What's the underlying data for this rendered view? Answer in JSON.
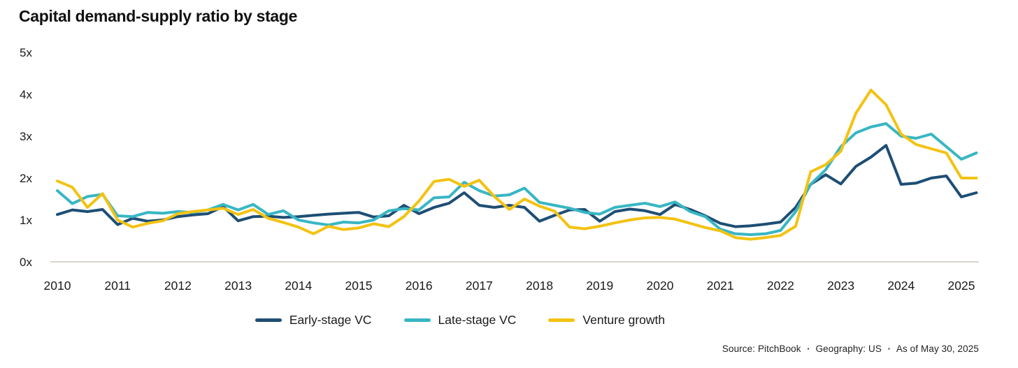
{
  "title": "Capital demand-supply ratio by stage",
  "legend": {
    "items": [
      "Early-stage VC",
      "Late-stage VC",
      "Venture growth"
    ]
  },
  "source": {
    "bullet": "▪",
    "parts": [
      "Source: PitchBook",
      "Geography: US",
      "As of May 30, 2025"
    ]
  },
  "chart_data": {
    "type": "line",
    "title": "Capital demand-supply ratio by stage",
    "frequency": "quarterly",
    "x_start": "2010Q1",
    "x_end": "2025Q2",
    "x_tick_labels": [
      "2010",
      "2011",
      "2012",
      "2013",
      "2014",
      "2015",
      "2016",
      "2017",
      "2018",
      "2019",
      "2020",
      "2021",
      "2022",
      "2023",
      "2024",
      "2025"
    ],
    "y_tick_labels": [
      "0x",
      "1x",
      "2x",
      "3x",
      "4x",
      "5x"
    ],
    "ylim": [
      0,
      5
    ],
    "grid": false,
    "legend_position": "bottom",
    "axis_line_color": "#d9d5ca",
    "text_color": "#1a1a1a",
    "series": [
      {
        "name": "Early-stage VC",
        "color": "#1e4e74",
        "values": [
          1.13,
          1.24,
          1.2,
          1.25,
          0.89,
          1.04,
          0.97,
          1.0,
          1.08,
          1.12,
          1.15,
          1.32,
          0.98,
          1.08,
          1.09,
          1.06,
          1.08,
          1.11,
          1.14,
          1.16,
          1.18,
          1.07,
          1.1,
          1.35,
          1.15,
          1.3,
          1.4,
          1.65,
          1.35,
          1.3,
          1.35,
          1.3,
          0.97,
          1.11,
          1.24,
          1.25,
          0.97,
          1.2,
          1.26,
          1.22,
          1.13,
          1.37,
          1.25,
          1.1,
          0.92,
          0.84,
          0.86,
          0.9,
          0.95,
          1.3,
          1.85,
          2.08,
          1.86,
          2.28,
          2.5,
          2.78,
          1.85,
          1.88,
          2.0,
          2.05,
          1.55,
          1.65
        ]
      },
      {
        "name": "Late-stage VC",
        "color": "#38b6c4",
        "values": [
          1.7,
          1.39,
          1.56,
          1.61,
          1.1,
          1.08,
          1.18,
          1.16,
          1.2,
          1.18,
          1.24,
          1.37,
          1.24,
          1.37,
          1.13,
          1.22,
          1.0,
          0.93,
          0.88,
          0.95,
          0.93,
          1.0,
          1.22,
          1.27,
          1.24,
          1.53,
          1.55,
          1.9,
          1.7,
          1.57,
          1.6,
          1.76,
          1.42,
          1.35,
          1.28,
          1.18,
          1.14,
          1.3,
          1.35,
          1.4,
          1.32,
          1.43,
          1.2,
          1.08,
          0.78,
          0.67,
          0.65,
          0.67,
          0.75,
          1.2,
          1.85,
          2.2,
          2.75,
          3.08,
          3.22,
          3.3,
          3.0,
          2.95,
          3.05,
          2.75,
          2.45,
          2.6
        ]
      },
      {
        "name": "Venture growth",
        "color": "#f3c212",
        "values": [
          1.93,
          1.78,
          1.3,
          1.63,
          1.0,
          0.83,
          0.92,
          0.98,
          1.15,
          1.2,
          1.24,
          1.28,
          1.13,
          1.25,
          1.04,
          0.94,
          0.83,
          0.67,
          0.85,
          0.77,
          0.81,
          0.91,
          0.84,
          1.08,
          1.45,
          1.92,
          1.97,
          1.8,
          1.95,
          1.56,
          1.25,
          1.5,
          1.33,
          1.21,
          0.83,
          0.79,
          0.85,
          0.93,
          1.0,
          1.05,
          1.06,
          1.02,
          0.92,
          0.82,
          0.74,
          0.58,
          0.54,
          0.58,
          0.63,
          0.85,
          2.15,
          2.32,
          2.64,
          3.55,
          4.1,
          3.75,
          3.05,
          2.8,
          2.7,
          2.6,
          2.0,
          2.0
        ]
      }
    ]
  }
}
